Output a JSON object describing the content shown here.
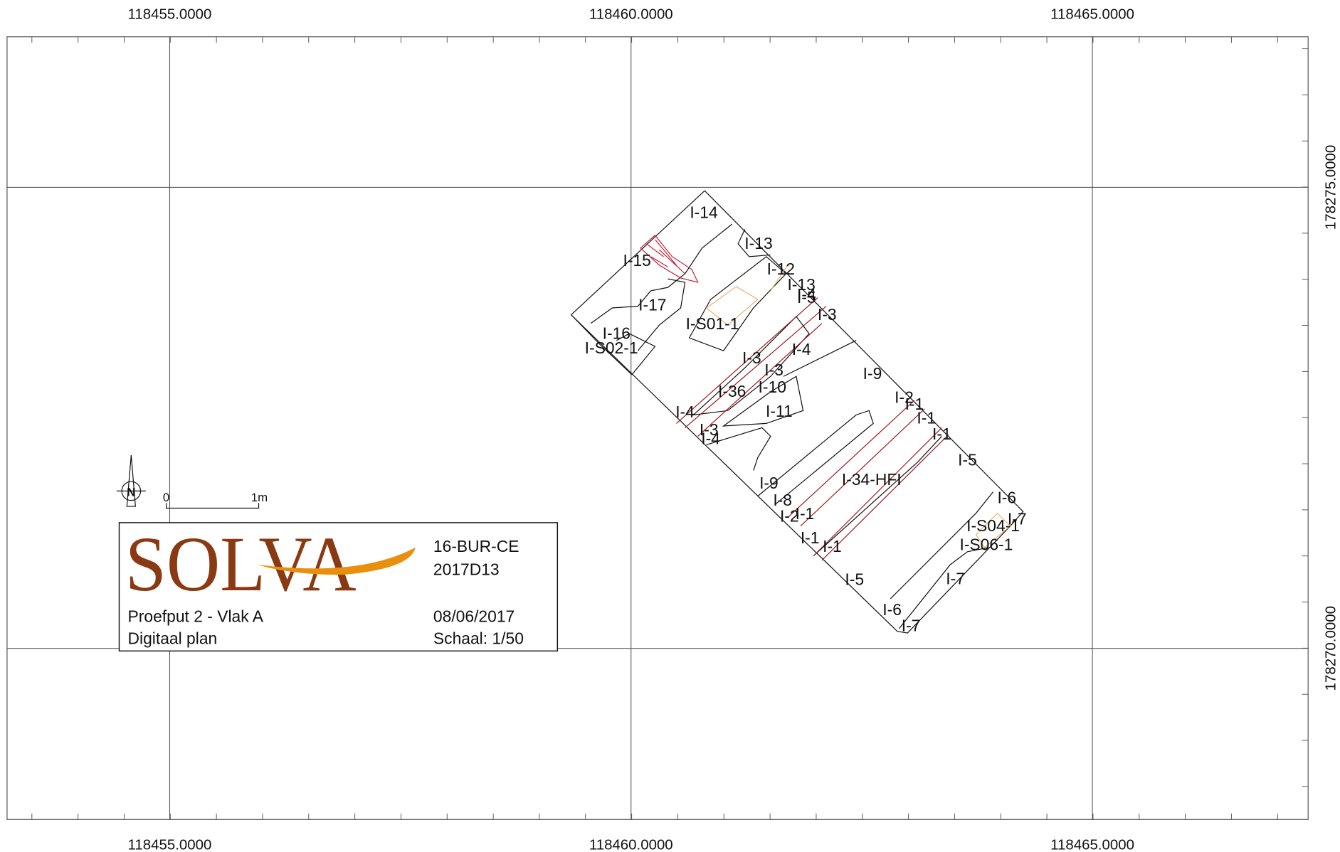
{
  "grid": {
    "x_labels": [
      "118455.0000",
      "118460.0000",
      "118465.0000"
    ],
    "y_labels": [
      "178275.0000",
      "178270.0000"
    ]
  },
  "features": [
    "I-14",
    "I-13",
    "I-15",
    "I-12",
    "I-13",
    "I-5",
    "I-4",
    "I-17",
    "I-S01-1",
    "I-3",
    "I-16",
    "I-S02-1",
    "I-4",
    "I-3",
    "I-9",
    "I-3",
    "I-36",
    "I-10",
    "I-2",
    "I-1",
    "I-11",
    "I-4",
    "I-1",
    "I-3",
    "I-4",
    "I-1",
    "I-5",
    "I-9",
    "I-34-HFI",
    "I-8",
    "I-6",
    "I-2",
    "I-1",
    "I-S04-1",
    "I-7",
    "I-S06-1",
    "I-1",
    "I-1",
    "I-5",
    "I-7",
    "I-6",
    "I-7"
  ],
  "north": "N",
  "scale_bar": {
    "start": "0",
    "end": "1m"
  },
  "title_block": {
    "logo": "SOLVA",
    "project": "16-BUR-CE",
    "code": "2017D13",
    "title": "Proefput 2 - Vlak A",
    "subtitle": "Digitaal plan",
    "date": "08/06/2017",
    "scale": "Schaal: 1/50"
  }
}
